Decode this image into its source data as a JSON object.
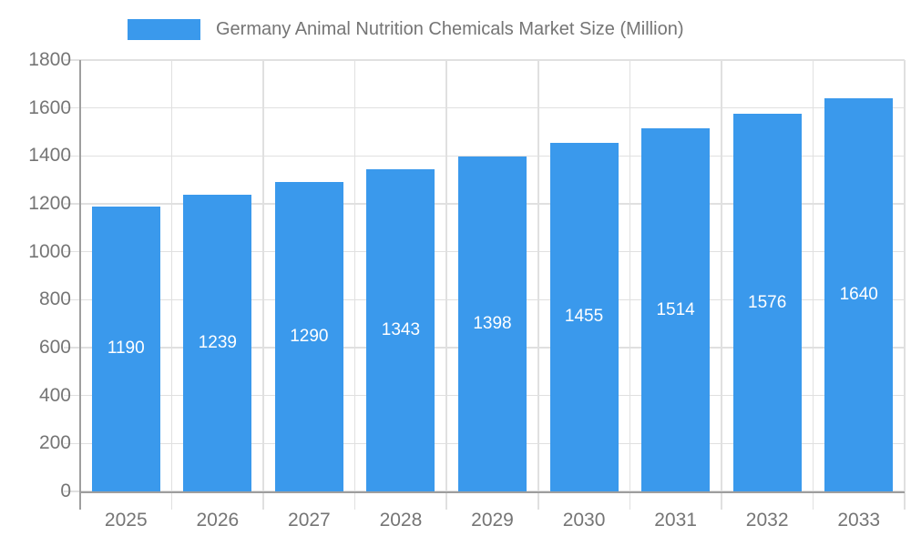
{
  "legend": {
    "label": "Germany Animal Nutrition Chemicals Market Size (Million)"
  },
  "chart_data": {
    "type": "bar",
    "title": "Germany Animal Nutrition Chemicals Market Size (Million)",
    "categories": [
      "2025",
      "2026",
      "2027",
      "2028",
      "2029",
      "2030",
      "2031",
      "2032",
      "2033"
    ],
    "values": [
      1190,
      1239,
      1290,
      1343,
      1398,
      1455,
      1514,
      1576,
      1640
    ],
    "xlabel": "",
    "ylabel": "",
    "ylim": [
      0,
      1800
    ],
    "ytick_step": 200,
    "ytick_labels": [
      "0",
      "200",
      "400",
      "600",
      "800",
      "1000",
      "1200",
      "1400",
      "1600",
      "1800"
    ],
    "grid": true,
    "legend_position": "top",
    "value_labels_inside_bars": true
  },
  "colors": {
    "bar": "#3A99EC",
    "axis_label": "#757575",
    "grid_line": "#e0e0e0",
    "axis_line": "#9e9e9e",
    "value_label": "#ffffff",
    "background": "#ffffff"
  }
}
